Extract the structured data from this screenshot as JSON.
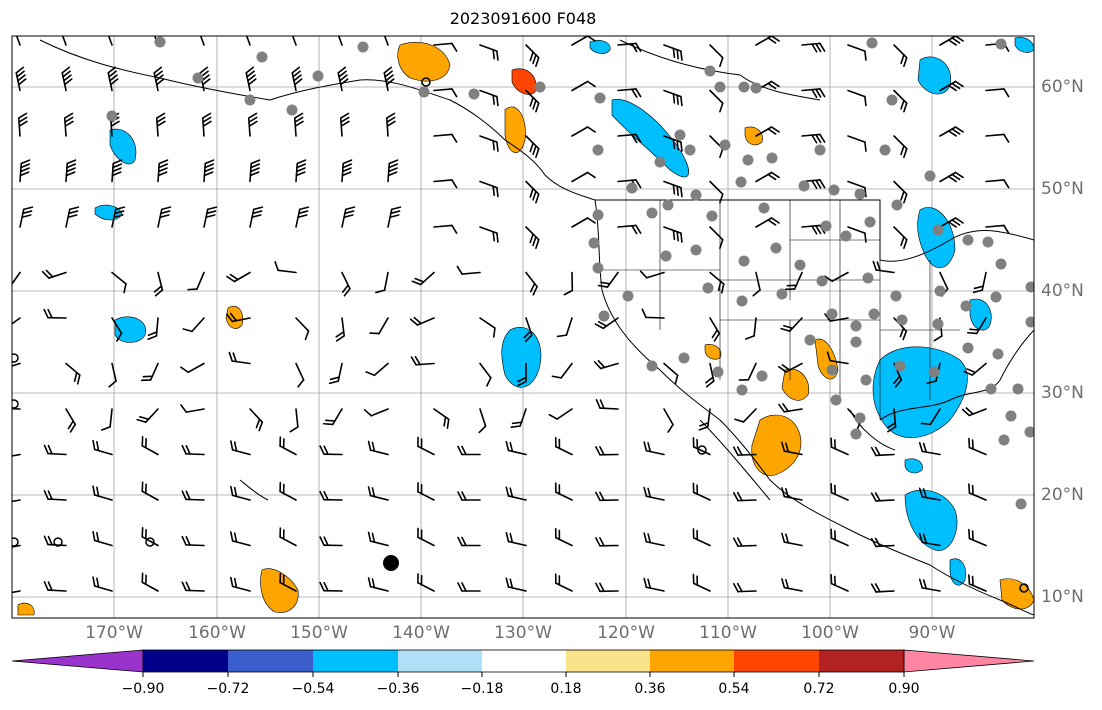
{
  "title": "2023091600 F048",
  "latitude_labels": [
    "60°N",
    "50°N",
    "40°N",
    "30°N",
    "20°N",
    "10°N"
  ],
  "longitude_labels": [
    "170°W",
    "160°W",
    "150°W",
    "140°W",
    "130°W",
    "120°W",
    "110°W",
    "100°W",
    "90°W"
  ],
  "map": {
    "lon_range": [
      -180,
      -80
    ],
    "lat_range": [
      8,
      65
    ],
    "gridlines": true,
    "land_fill": "#ffffff",
    "coastline_color": "#000000",
    "wind_barbs": "black",
    "station_markers": "gray dots"
  },
  "colorbar": {
    "extend": "both",
    "tick_labels": [
      "−0.90",
      "−0.72",
      "−0.54",
      "−0.36",
      "−0.18",
      "0.18",
      "0.36",
      "0.54",
      "0.72",
      "0.90"
    ],
    "colors": [
      "#9933cc",
      "#00008b",
      "#3a5fcd",
      "#00bfff",
      "#b0e0f8",
      "#ffffff",
      "#fbe38c",
      "#ffa500",
      "#ff4500",
      "#b22222",
      "#ff85a2"
    ]
  }
}
